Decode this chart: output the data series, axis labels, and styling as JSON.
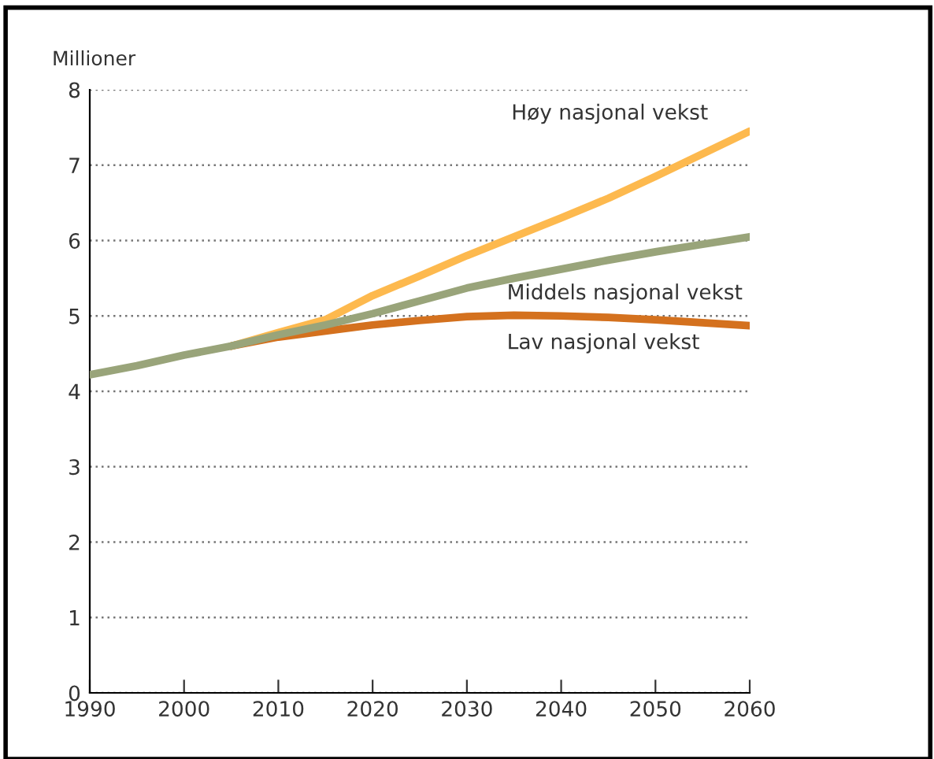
{
  "chart_data": {
    "type": "line",
    "ylabel": "Millioner",
    "xlim": [
      1990,
      2060
    ],
    "xticks": [
      1990,
      2000,
      2010,
      2020,
      2030,
      2040,
      2050,
      2060
    ],
    "ylim": [
      0,
      8
    ],
    "yticks": [
      0,
      1,
      2,
      3,
      4,
      5,
      6,
      7,
      8
    ],
    "grid": "y",
    "legend": false,
    "line_style": "solid",
    "marker": "none",
    "series": [
      {
        "name": "Høy nasjonal vekst",
        "color": "#fdb94e",
        "x": [
          2005,
          2010,
          2015,
          2020,
          2025,
          2030,
          2035,
          2040,
          2045,
          2050,
          2055,
          2060
        ],
        "values": [
          4.6,
          4.78,
          4.95,
          5.27,
          5.53,
          5.8,
          6.05,
          6.3,
          6.56,
          6.85,
          7.15,
          7.45
        ]
      },
      {
        "name": "Lav nasjonal vekst",
        "color": "#d4711e",
        "x": [
          2005,
          2010,
          2015,
          2020,
          2025,
          2030,
          2035,
          2040,
          2045,
          2050,
          2055,
          2060
        ],
        "values": [
          4.6,
          4.72,
          4.8,
          4.88,
          4.94,
          4.99,
          5.01,
          5.0,
          4.98,
          4.95,
          4.91,
          4.87
        ]
      },
      {
        "name": "Middels nasjonal vekst",
        "color": "#99a47a",
        "x": [
          1990,
          1995,
          2000,
          2005,
          2010,
          2015,
          2020,
          2025,
          2030,
          2035,
          2040,
          2045,
          2050,
          2055,
          2060
        ],
        "values": [
          4.22,
          4.34,
          4.48,
          4.6,
          4.75,
          4.88,
          5.03,
          5.2,
          5.37,
          5.5,
          5.62,
          5.74,
          5.85,
          5.95,
          6.05
        ]
      }
    ]
  }
}
